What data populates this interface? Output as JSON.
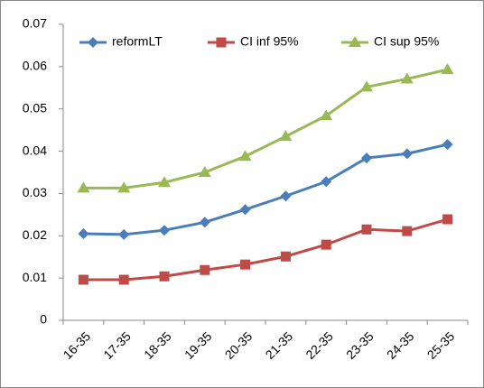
{
  "chart_data": {
    "type": "line",
    "categories": [
      "16-35",
      "17-35",
      "18-35",
      "19-35",
      "20-35",
      "21-35",
      "22-35",
      "23-35",
      "24-35",
      "25-35"
    ],
    "series": [
      {
        "name": "reformLT",
        "color": "#4a7ebb",
        "marker": "diamond",
        "values": [
          0.0205,
          0.0203,
          0.0213,
          0.0232,
          0.0262,
          0.0294,
          0.0328,
          0.0384,
          0.0394,
          0.0416
        ]
      },
      {
        "name": "CI inf 95%",
        "color": "#be4b48",
        "marker": "square",
        "values": [
          0.0096,
          0.0096,
          0.0104,
          0.0119,
          0.0132,
          0.0151,
          0.0179,
          0.0215,
          0.0211,
          0.0239
        ]
      },
      {
        "name": "CI sup 95%",
        "color": "#98b954",
        "marker": "triangle",
        "values": [
          0.0313,
          0.0313,
          0.0326,
          0.035,
          0.0388,
          0.0435,
          0.0484,
          0.0552,
          0.0571,
          0.0593
        ]
      }
    ],
    "ylim": [
      0,
      0.07
    ],
    "yticks": [
      0,
      0.01,
      0.02,
      0.03,
      0.04,
      0.05,
      0.06,
      0.07
    ],
    "grid": false,
    "legend": "top"
  }
}
